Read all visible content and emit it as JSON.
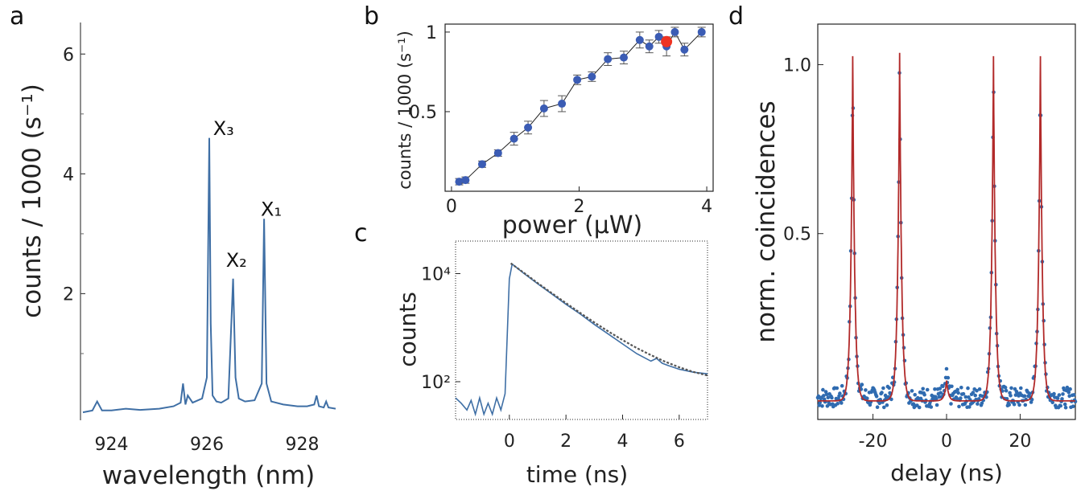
{
  "chart_data": [
    {
      "panel": "a",
      "type": "line",
      "xlabel": "wavelength (nm)",
      "ylabel": "counts / 1000 (s⁻¹)",
      "xlim": [
        923.35,
        928.75
      ],
      "ylim": [
        -0.1,
        6.5
      ],
      "xticks": [
        924,
        926,
        928
      ],
      "yticks": [
        2,
        4,
        6
      ],
      "color": "#3f6fa5",
      "annotations": [
        {
          "text": "X₃",
          "x": 926.35,
          "y": 4.65
        },
        {
          "text": "X₂",
          "x": 926.62,
          "y": 2.45
        },
        {
          "text": "X₁",
          "x": 927.35,
          "y": 3.3
        }
      ],
      "series": [
        {
          "x": [
            923.4,
            923.6,
            923.7,
            923.8,
            924.0,
            924.3,
            924.6,
            925.0,
            925.3,
            925.45,
            925.5,
            925.55,
            925.6,
            925.7,
            925.9,
            926.0,
            926.05,
            926.08,
            926.12,
            926.2,
            926.3,
            926.45,
            926.55,
            926.6,
            926.67,
            926.8,
            927.0,
            927.15,
            927.2,
            927.25,
            927.35,
            927.6,
            927.9,
            928.1,
            928.25,
            928.3,
            928.35,
            928.45,
            928.5,
            928.55,
            928.7
          ],
          "y": [
            0.02,
            0.05,
            0.2,
            0.05,
            0.05,
            0.08,
            0.06,
            0.08,
            0.12,
            0.18,
            0.5,
            0.15,
            0.3,
            0.18,
            0.25,
            0.6,
            4.6,
            1.5,
            0.3,
            0.2,
            0.18,
            0.25,
            2.25,
            0.6,
            0.25,
            0.2,
            0.22,
            0.5,
            3.25,
            0.5,
            0.2,
            0.15,
            0.12,
            0.12,
            0.15,
            0.3,
            0.12,
            0.1,
            0.2,
            0.1,
            0.08
          ]
        }
      ]
    },
    {
      "panel": "b",
      "type": "scatter",
      "xlabel": "power (μW)",
      "ylabel": "counts / 1000 (s⁻¹)",
      "xlim": [
        -0.1,
        4.1
      ],
      "ylim": [
        0.0,
        1.05
      ],
      "xticks": [
        0,
        2,
        4
      ],
      "yticks": [
        0.5,
        1
      ],
      "color": "#3b5cb4",
      "highlight_color": "#ee3322",
      "series": [
        {
          "x": [
            0.12,
            0.22,
            0.48,
            0.73,
            0.98,
            1.2,
            1.45,
            1.73,
            1.97,
            2.2,
            2.45,
            2.7,
            2.95,
            3.1,
            3.25,
            3.37,
            3.5,
            3.65,
            3.92
          ],
          "y": [
            0.06,
            0.07,
            0.17,
            0.24,
            0.33,
            0.4,
            0.52,
            0.55,
            0.7,
            0.72,
            0.83,
            0.84,
            0.95,
            0.91,
            0.97,
            0.91,
            1.0,
            0.89,
            1.0
          ],
          "err": [
            0.02,
            0.02,
            0.02,
            0.02,
            0.04,
            0.04,
            0.05,
            0.05,
            0.03,
            0.03,
            0.04,
            0.04,
            0.05,
            0.04,
            0.04,
            0.06,
            0.03,
            0.04,
            0.03
          ]
        }
      ],
      "highlight": {
        "x": 3.37,
        "y": 0.94
      }
    },
    {
      "panel": "c",
      "type": "line",
      "xlabel": "time (ns)",
      "ylabel": "counts",
      "xscale": "linear",
      "yscale": "log",
      "xlim": [
        -1.9,
        7.0
      ],
      "ylim": [
        20,
        40000
      ],
      "xticks": [
        0,
        2,
        4,
        6
      ],
      "yticks": [
        {
          "value": 100,
          "label": "10²"
        },
        {
          "value": 10000,
          "label": "10⁴"
        }
      ],
      "color": "#3f6fa5",
      "fit_color": "#555555",
      "series": [
        {
          "name": "",
          "x": [
            -1.9,
            -1.7,
            -1.5,
            -1.35,
            -1.2,
            -1.05,
            -0.9,
            -0.75,
            -0.6,
            -0.45,
            -0.3,
            -0.15,
            0.0,
            0.1,
            0.5,
            1.0,
            1.5,
            2.0,
            2.5,
            3.0,
            3.5,
            4.0,
            4.5,
            5.0,
            5.2,
            5.4,
            5.6,
            6.0,
            6.5,
            7.0
          ],
          "y": [
            50,
            40,
            30,
            45,
            25,
            50,
            25,
            40,
            25,
            50,
            30,
            60,
            8000,
            15000,
            10200,
            6500,
            4200,
            2700,
            1800,
            1150,
            760,
            500,
            330,
            240,
            270,
            220,
            200,
            170,
            150,
            140
          ]
        },
        {
          "name": "",
          "style": "dashed",
          "x": [
            0.05,
            0.5,
            1.0,
            1.5,
            2.0,
            2.5,
            3.0,
            3.5,
            4.0,
            4.5,
            5.0,
            5.5,
            6.0,
            6.5,
            7.0
          ],
          "y": [
            15500,
            10500,
            6700,
            4350,
            2850,
            1880,
            1250,
            850,
            590,
            420,
            310,
            235,
            185,
            152,
            130
          ]
        }
      ]
    },
    {
      "panel": "d",
      "type": "scatter",
      "xlabel": "delay (ns)",
      "ylabel": "norm. coincidences",
      "xlim": [
        -35,
        35
      ],
      "ylim": [
        -0.05,
        1.12
      ],
      "xticks": [
        -20,
        0,
        20
      ],
      "yticks": [
        0.5,
        1.0
      ],
      "point_color": "#2f6bb0",
      "fit_color": "#b22a2a",
      "peak_centers": [
        -25.5,
        -12.75,
        0,
        12.75,
        25.5
      ],
      "peak_heights": [
        1.02,
        1.03,
        0.06,
        1.02,
        1.02
      ],
      "peak_width_ns": 0.55,
      "baseline": 0.005
    }
  ]
}
